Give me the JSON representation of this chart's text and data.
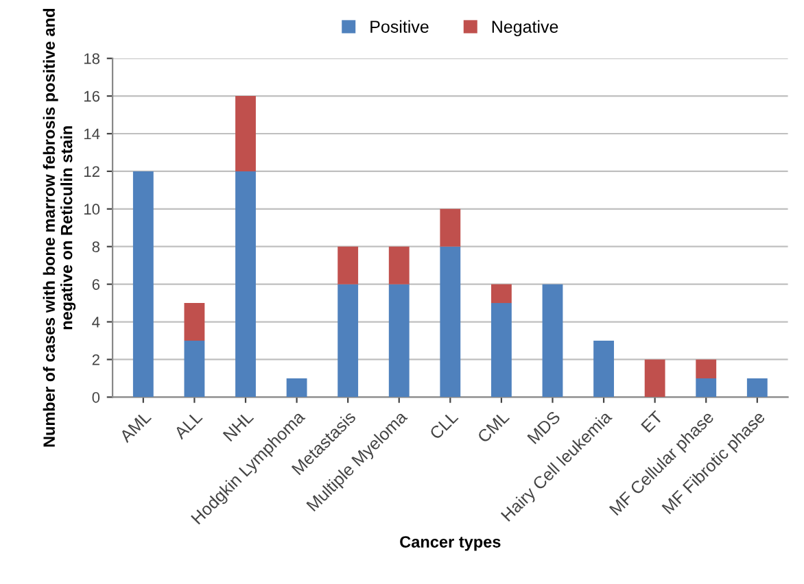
{
  "chart_data": {
    "type": "bar",
    "stacked": true,
    "xlabel": "Cancer types",
    "ylabel": "Number of cases with bone marrow febrosis positive and negative on Reticulin stain",
    "categories": [
      "AML",
      "ALL",
      "NHL",
      "Hodgkin Lymphoma",
      "Metastasis",
      "Multiple Myeloma",
      "CLL",
      "CML",
      "MDS",
      "Hairy Cell leukemia",
      "ET",
      "MF Cellular phase",
      "MF Fibrotic phase"
    ],
    "series": [
      {
        "name": "Positive",
        "color": "#4f81bd",
        "values": [
          12,
          3,
          12,
          1,
          6,
          6,
          8,
          5,
          6,
          3,
          0,
          1,
          1
        ]
      },
      {
        "name": "Negative",
        "color": "#c0504d",
        "values": [
          0,
          2,
          4,
          0,
          2,
          2,
          2,
          1,
          0,
          0,
          2,
          1,
          0
        ]
      }
    ],
    "ylim": [
      0,
      18
    ],
    "yticks": [
      0,
      2,
      4,
      6,
      8,
      10,
      12,
      14,
      16,
      18
    ],
    "grid": "y",
    "legend": "top"
  }
}
